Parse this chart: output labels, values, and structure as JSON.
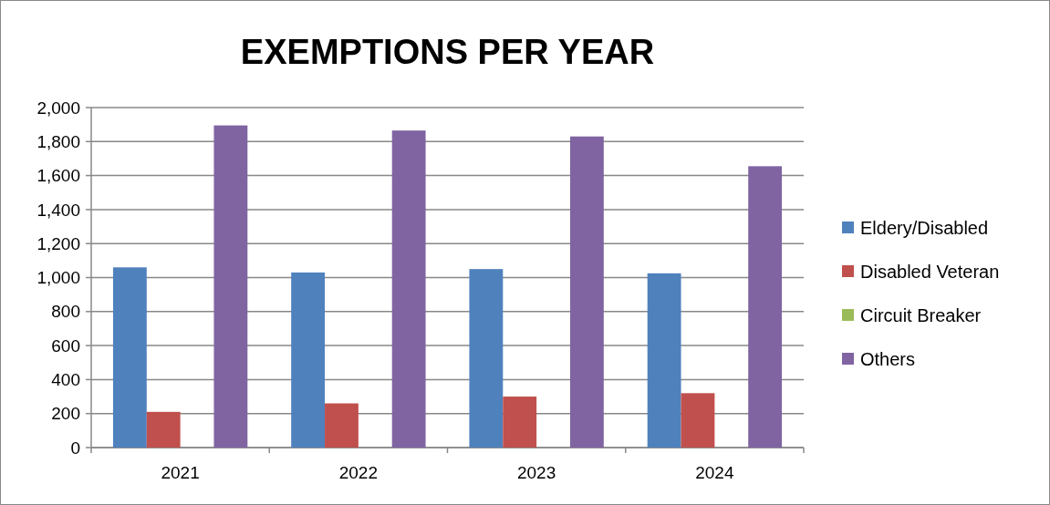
{
  "chart_data": {
    "type": "bar",
    "title": "EXEMPTIONS PER YEAR",
    "categories": [
      "2021",
      "2022",
      "2023",
      "2024"
    ],
    "series": [
      {
        "name": "Eldery/Disabled",
        "color": "#4f81bd",
        "values": [
          1060,
          1030,
          1050,
          1025
        ]
      },
      {
        "name": "Disabled Veteran",
        "color": "#c0504d",
        "values": [
          210,
          260,
          300,
          320
        ]
      },
      {
        "name": "Circuit Breaker",
        "color": "#9bbb59",
        "values": [
          0,
          0,
          0,
          0
        ]
      },
      {
        "name": "Others",
        "color": "#8064a2",
        "values": [
          1895,
          1865,
          1830,
          1655
        ]
      }
    ],
    "ylim": [
      0,
      2000
    ],
    "yticks": [
      {
        "value": 0,
        "label": "0"
      },
      {
        "value": 200,
        "label": "200"
      },
      {
        "value": 400,
        "label": "400"
      },
      {
        "value": 600,
        "label": "600"
      },
      {
        "value": 800,
        "label": "800"
      },
      {
        "value": 1000,
        "label": "1,000"
      },
      {
        "value": 1200,
        "label": "1,200"
      },
      {
        "value": 1400,
        "label": "1,400"
      },
      {
        "value": 1600,
        "label": "1,600"
      },
      {
        "value": 1800,
        "label": "1,800"
      },
      {
        "value": 2000,
        "label": "2,000"
      }
    ],
    "grid": "y",
    "legend": "right"
  }
}
